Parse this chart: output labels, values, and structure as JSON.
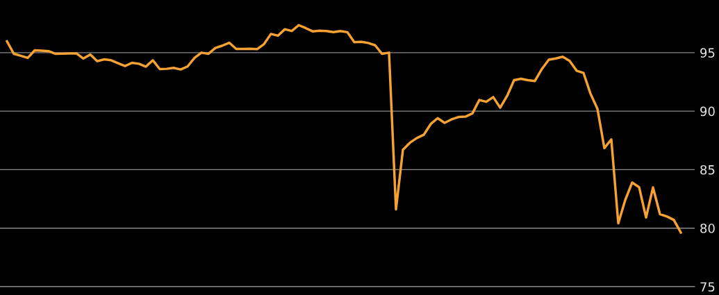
{
  "chart_data": {
    "type": "line",
    "categories": [
      null,
      null,
      null,
      null,
      null,
      null,
      null,
      null,
      null,
      null,
      null,
      null,
      null,
      null,
      null,
      null,
      null,
      null,
      null,
      null,
      null,
      null,
      null,
      null,
      null,
      null,
      null,
      null,
      null,
      null,
      null,
      null,
      null,
      null,
      null,
      null,
      null,
      null,
      null,
      null,
      null,
      null,
      null,
      null,
      null,
      null,
      null,
      null,
      null,
      null,
      null,
      null,
      null,
      null,
      null,
      null,
      null,
      null,
      null,
      null,
      null,
      null,
      null,
      null,
      null,
      null,
      null,
      null,
      null,
      null,
      null,
      null,
      null,
      null,
      null,
      null,
      null,
      null,
      null,
      null,
      null,
      null,
      null,
      null,
      null,
      null,
      null,
      null,
      null,
      null,
      null,
      null,
      null,
      null,
      null,
      null,
      null,
      null
    ],
    "series": [
      {
        "color": "#f5a133",
        "values": [
          95.97,
          94.9,
          94.73,
          94.55,
          95.2,
          95.17,
          95.13,
          94.9,
          94.91,
          94.93,
          94.94,
          94.5,
          94.84,
          94.27,
          94.43,
          94.35,
          94.1,
          93.86,
          94.13,
          94.05,
          93.8,
          94.35,
          93.6,
          93.62,
          93.7,
          93.56,
          93.82,
          94.55,
          95.0,
          94.9,
          95.4,
          95.6,
          95.85,
          95.32,
          95.32,
          95.33,
          95.3,
          95.73,
          96.6,
          96.45,
          97.0,
          96.85,
          97.35,
          97.1,
          96.82,
          96.88,
          96.85,
          96.76,
          96.85,
          96.75,
          95.9,
          95.93,
          95.83,
          95.63,
          94.9,
          95.0,
          81.6,
          86.7,
          87.3,
          87.7,
          87.98,
          88.9,
          89.4,
          89.0,
          89.3,
          89.5,
          89.53,
          89.81,
          90.95,
          90.8,
          91.2,
          90.3,
          91.3,
          92.65,
          92.77,
          92.65,
          92.58,
          93.6,
          94.4,
          94.5,
          94.65,
          94.3,
          93.46,
          93.26,
          91.5,
          90.2,
          86.84,
          87.59,
          80.42,
          82.4,
          83.9,
          83.5,
          80.91,
          83.48,
          81.2,
          81.0,
          80.7,
          79.63
        ]
      }
    ],
    "ylim": [
      75,
      99.5
    ],
    "yticks": [
      75,
      80,
      85,
      90,
      95
    ],
    "grid": "y",
    "tick_labels": "y",
    "marker": "none",
    "line_style": "solid"
  }
}
